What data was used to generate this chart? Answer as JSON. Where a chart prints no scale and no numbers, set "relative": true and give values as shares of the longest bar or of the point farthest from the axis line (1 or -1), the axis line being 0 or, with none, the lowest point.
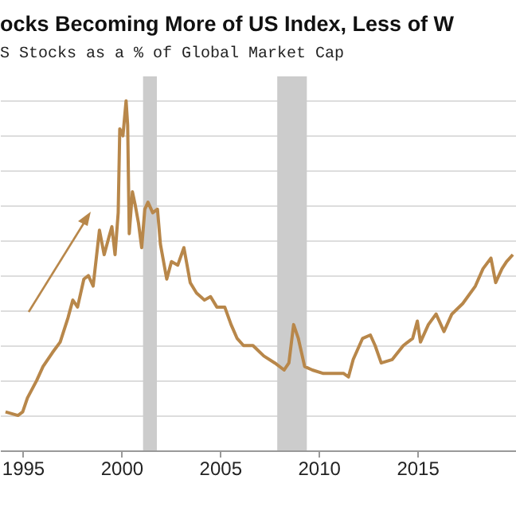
{
  "chart_data": {
    "type": "line",
    "title": "ocks Becoming More of US Index, Less of W",
    "subtitle": "S Stocks as a % of Global Market Cap",
    "relative": true,
    "grid": "y",
    "xlim": [
      1993.85,
      2020.0
    ],
    "xticks": [
      1995,
      2000,
      2005,
      2010,
      2015
    ],
    "bands": [
      {
        "axis": "x",
        "from": 2001.1,
        "to": 2001.8,
        "color": "#cccccc"
      },
      {
        "axis": "x",
        "from": 2007.9,
        "to": 2009.4,
        "color": "#cccccc"
      }
    ],
    "series": [
      {
        "color": "#b8874a",
        "x": [
          1994.13,
          1994.76,
          1995.0,
          1995.24,
          1995.71,
          1996.03,
          1996.51,
          1996.9,
          1997.3,
          1997.54,
          1997.78,
          1998.1,
          1998.33,
          1998.57,
          1998.89,
          1999.13,
          1999.37,
          1999.52,
          1999.68,
          1999.84,
          1999.92,
          2000.08,
          2000.24,
          2000.32,
          2000.4,
          2000.56,
          2000.71,
          2000.87,
          2001.03,
          2001.19,
          2001.35,
          2001.59,
          2001.83,
          2001.98,
          2002.3,
          2002.54,
          2002.86,
          2003.17,
          2003.49,
          2003.81,
          2004.21,
          2004.52,
          2004.84,
          2005.24,
          2005.56,
          2005.87,
          2006.19,
          2006.67,
          2007.22,
          2007.78,
          2008.25,
          2008.49,
          2008.73,
          2008.97,
          2009.29,
          2009.68,
          2010.24,
          2010.79,
          2011.27,
          2011.51,
          2011.75,
          2012.22,
          2012.62,
          2012.86,
          2013.17,
          2013.73,
          2014.29,
          2014.76,
          2015.0,
          2015.16,
          2015.56,
          2015.95,
          2016.35,
          2016.75,
          2017.3,
          2017.94,
          2018.33,
          2018.73,
          2018.97,
          2019.29,
          2019.52,
          2019.84
        ],
        "values": [
          0.11,
          0.1,
          0.11,
          0.15,
          0.2,
          0.24,
          0.28,
          0.31,
          0.38,
          0.43,
          0.41,
          0.49,
          0.5,
          0.47,
          0.63,
          0.56,
          0.61,
          0.64,
          0.56,
          0.68,
          0.92,
          0.9,
          1.0,
          0.93,
          0.62,
          0.74,
          0.7,
          0.65,
          0.58,
          0.69,
          0.71,
          0.68,
          0.69,
          0.59,
          0.49,
          0.54,
          0.53,
          0.58,
          0.48,
          0.45,
          0.43,
          0.44,
          0.41,
          0.41,
          0.36,
          0.32,
          0.3,
          0.3,
          0.27,
          0.25,
          0.23,
          0.25,
          0.36,
          0.32,
          0.24,
          0.23,
          0.22,
          0.22,
          0.22,
          0.21,
          0.26,
          0.32,
          0.33,
          0.3,
          0.25,
          0.26,
          0.3,
          0.32,
          0.37,
          0.31,
          0.36,
          0.39,
          0.34,
          0.39,
          0.42,
          0.47,
          0.52,
          0.55,
          0.48,
          0.52,
          0.54,
          0.56
        ]
      }
    ]
  }
}
